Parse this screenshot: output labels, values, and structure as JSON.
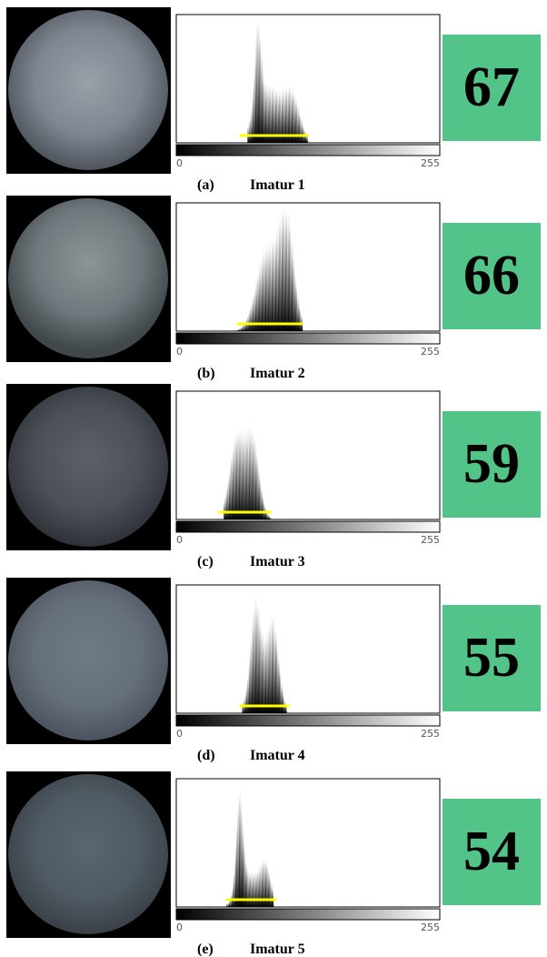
{
  "panels": [
    {
      "label": "(a)",
      "caption": "Imatur 1",
      "score": 67,
      "axis_min": 0,
      "axis_max": 255
    },
    {
      "label": "(b)",
      "caption": "Imatur 2",
      "score": 66,
      "axis_min": 0,
      "axis_max": 255
    },
    {
      "label": "(c)",
      "caption": "Imatur 3",
      "score": 59,
      "axis_min": 0,
      "axis_max": 255
    },
    {
      "label": "(d)",
      "caption": "Imatur 4",
      "score": 55,
      "axis_min": 0,
      "axis_max": 255
    },
    {
      "label": "(e)",
      "caption": "Imatur 5",
      "score": 54,
      "axis_min": 0,
      "axis_max": 255
    }
  ]
}
